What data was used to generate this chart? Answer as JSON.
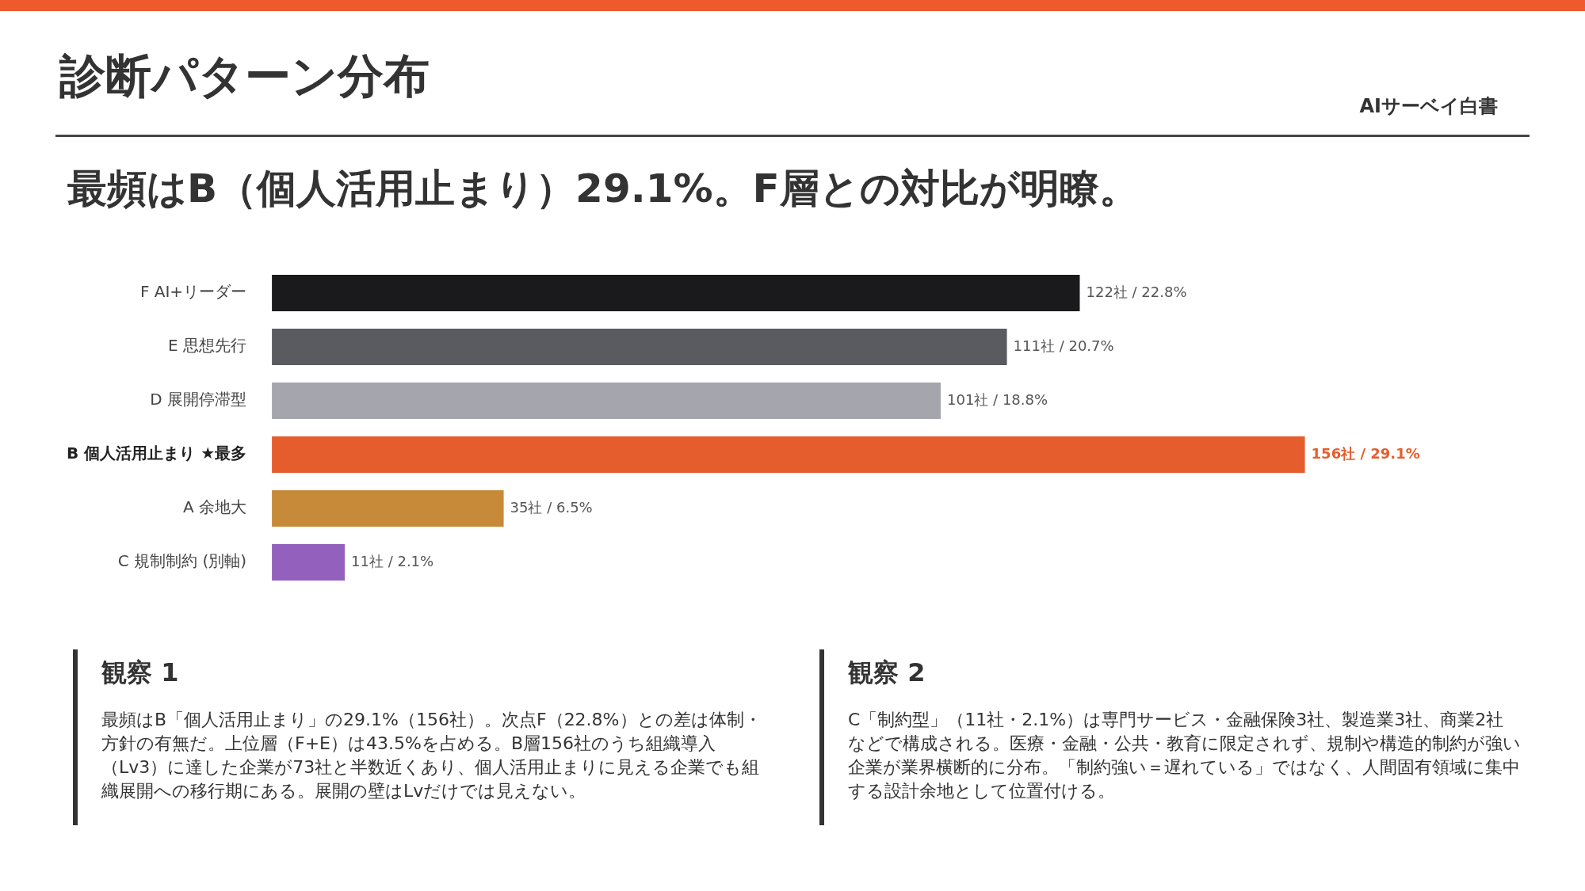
{
  "chart_data": {
    "type": "bar",
    "orientation": "horizontal",
    "title": "診断パターン分布",
    "subtitle": "最頻はB（個人活用止まり）29.1%。F層との対比が明瞭。",
    "categories": [
      "F AI+リーダー",
      "E 思想先行",
      "D 展開停滞型",
      "B 個人活用止まり ★最多",
      "A 余地大",
      "C 規制制約 (別軸)"
    ],
    "values": [
      122,
      111,
      101,
      156,
      35,
      11
    ],
    "value_labels": [
      "122社 / 22.8%",
      "111社 / 20.7%",
      "101社 / 18.8%",
      "156社 / 29.1%",
      "35社 / 6.5%",
      "11社 / 2.1%"
    ],
    "colors": [
      "#1a1a1c",
      "#5a5b60",
      "#a5a5ae",
      "#e55d2d",
      "#c68a38",
      "#9360bd"
    ],
    "legend": false,
    "annotations": [
      "AIサーベイ白書",
      "観察 1",
      "最頻はB「個人活用止まり」の29.1%（156社）。次点F（22.8%）との差は体制・方針の有無だ。上位層（F+E）は43.5%を占める。B層156社のうち組織導入（Lv3）に達した企業が73社と半数近くあり、個人活用止まりに見える企業でも組織展開への移行期にある。展開の壁はLvだけでは見えない。",
      "観察 2",
      "C「制約型」（11社・2.1%）は専門サービス・金融保険3社、製造業3社、商業2社などで構成される。医療・金融・公共・教育に限定されず、規制や構造的制約が強い企業が業界横断的に分布。「制約強い＝遅れている」ではなく、人間固有領域に集中する設計余地として位置付ける。"
    ]
  }
}
